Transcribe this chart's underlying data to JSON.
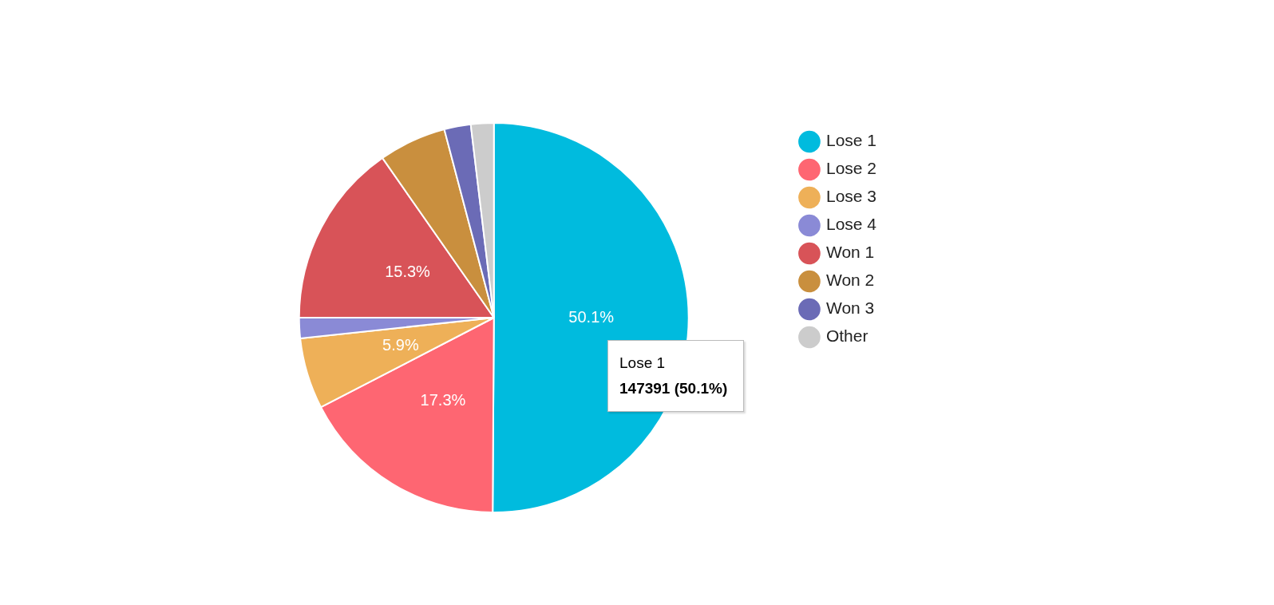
{
  "chart_data": {
    "type": "pie",
    "categories": [
      "Lose 1",
      "Lose 2",
      "Lose 3",
      "Lose 4",
      "Won 1",
      "Won 2",
      "Won 3",
      "Other"
    ],
    "values": [
      50.1,
      17.3,
      5.9,
      1.7,
      15.3,
      5.6,
      2.2,
      1.9
    ],
    "colors": [
      "#00bbde",
      "#fe6672",
      "#eeb058",
      "#8a8ad6",
      "#d85358",
      "#c98f3e",
      "#6b6bb6",
      "#cccccc"
    ],
    "value_labels": [
      "50.1%",
      "17.3%",
      "5.9%",
      null,
      "15.3%",
      null,
      null,
      null
    ],
    "legend": "right",
    "annotations": [
      "Lose 1",
      "147391 (50.1%)"
    ]
  }
}
